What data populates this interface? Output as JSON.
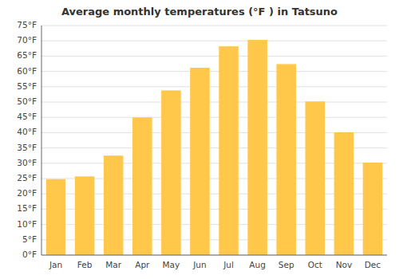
{
  "chart_data": {
    "type": "bar",
    "title": "Average monthly temperatures (°F ) in Tatsuno",
    "categories": [
      "Jan",
      "Feb",
      "Mar",
      "Apr",
      "May",
      "Jun",
      "Jul",
      "Aug",
      "Sep",
      "Oct",
      "Nov",
      "Dec"
    ],
    "values": [
      24.8,
      25.7,
      32.5,
      45.0,
      53.8,
      61.2,
      68.2,
      70.3,
      62.4,
      50.2,
      40.1,
      30.2
    ],
    "color": "#FFC84A",
    "ylim": [
      0,
      75
    ],
    "yticks": [
      {
        "value": 0,
        "label": "0°F"
      },
      {
        "value": 5,
        "label": "5°F"
      },
      {
        "value": 10,
        "label": "10°F"
      },
      {
        "value": 15,
        "label": "15°F"
      },
      {
        "value": 20,
        "label": "20°F"
      },
      {
        "value": 25,
        "label": "25°F"
      },
      {
        "value": 30,
        "label": "30°F"
      },
      {
        "value": 35,
        "label": "35°F"
      },
      {
        "value": 40,
        "label": "40°F"
      },
      {
        "value": 45,
        "label": "45°F"
      },
      {
        "value": 50,
        "label": "50°F"
      },
      {
        "value": 55,
        "label": "55°F"
      },
      {
        "value": 60,
        "label": "60°F"
      },
      {
        "value": 65,
        "label": "65°F"
      },
      {
        "value": 70,
        "label": "70°F"
      },
      {
        "value": 75,
        "label": "75°F"
      }
    ],
    "grid": true
  }
}
